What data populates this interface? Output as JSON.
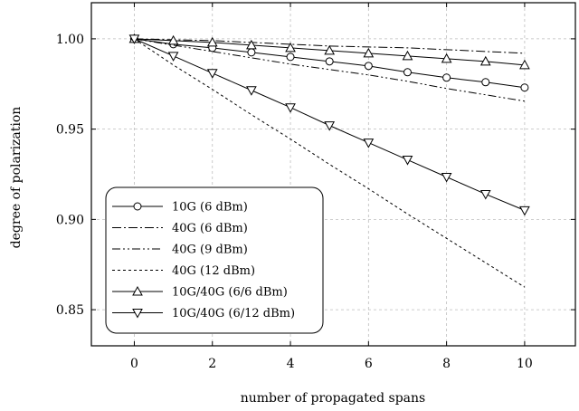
{
  "chart_data": {
    "type": "line",
    "title": "",
    "xlabel": "number of propagated spans",
    "ylabel": "degree of polarization",
    "xlim": [
      -1.1,
      11.3
    ],
    "ylim": [
      0.83,
      1.02
    ],
    "xticks": [
      0,
      2,
      4,
      6,
      8,
      10
    ],
    "xtick_labels": [
      "0",
      "2",
      "4",
      "6",
      "8",
      "10"
    ],
    "yticks": [
      0.85,
      0.9,
      0.95,
      1.0
    ],
    "ytick_labels": [
      "0.85",
      "0.90",
      "0.95",
      "1.00"
    ],
    "grid": true,
    "legend_position": "lower-left",
    "x": [
      0,
      1,
      2,
      3,
      4,
      5,
      6,
      7,
      8,
      9,
      10
    ],
    "series": [
      {
        "name": "10G (6 dBm)",
        "line": "solid",
        "marker": "circle",
        "values": [
          1.0,
          0.997,
          0.995,
          0.9925,
          0.99,
          0.9875,
          0.985,
          0.9815,
          0.9785,
          0.976,
          0.973
        ]
      },
      {
        "name": "40G (6 dBm)",
        "line": "dashdot",
        "marker": "none",
        "values": [
          1.0,
          0.9995,
          0.999,
          0.998,
          0.997,
          0.996,
          0.9955,
          0.995,
          0.994,
          0.993,
          0.992
        ]
      },
      {
        "name": "40G (9 dBm)",
        "line": "dashdotdot",
        "marker": "none",
        "values": [
          1.0,
          0.9965,
          0.993,
          0.9895,
          0.986,
          0.983,
          0.98,
          0.9765,
          0.9725,
          0.969,
          0.9655
        ]
      },
      {
        "name": "40G (12 dBm)",
        "line": "dotted",
        "marker": "none",
        "values": [
          1.0,
          0.9855,
          0.972,
          0.958,
          0.9445,
          0.9305,
          0.917,
          0.903,
          0.8895,
          0.876,
          0.8625
        ]
      },
      {
        "name": "10G/40G (6/6 dBm)",
        "line": "solid",
        "marker": "triangle-up",
        "values": [
          1.0,
          0.999,
          0.998,
          0.9965,
          0.995,
          0.9935,
          0.992,
          0.9905,
          0.989,
          0.9875,
          0.9855
        ]
      },
      {
        "name": "10G/40G (6/12 dBm)",
        "line": "solid",
        "marker": "triangle-down",
        "values": [
          1.0,
          0.9905,
          0.981,
          0.9715,
          0.962,
          0.952,
          0.9425,
          0.933,
          0.9235,
          0.914,
          0.905
        ]
      }
    ]
  }
}
